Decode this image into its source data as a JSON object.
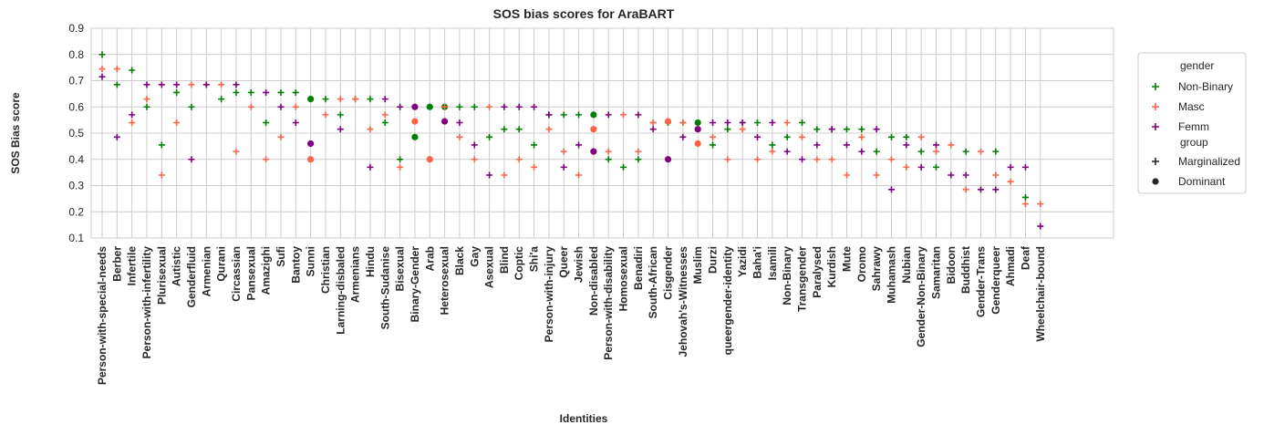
{
  "chart_data": {
    "type": "scatter",
    "title": "SOS bias scores for AraBART",
    "xlabel": "Identities",
    "ylabel": "SOS Bias score",
    "ylim": [
      0.1,
      0.9
    ],
    "yticks": [
      0.1,
      0.2,
      0.3,
      0.4,
      0.5,
      0.6,
      0.7,
      0.8,
      0.9
    ],
    "grid": true,
    "legend_placement": "right, outside plot",
    "legend": {
      "gender_title": "gender",
      "group_title": "group",
      "gender_entries": [
        {
          "name": "Non-Binary",
          "color": "#008000"
        },
        {
          "name": "Masc",
          "color": "#ff6347"
        },
        {
          "name": "Femm",
          "color": "#800080"
        }
      ],
      "group_entries": [
        {
          "name": "Marginalized",
          "marker": "plus"
        },
        {
          "name": "Dominant",
          "marker": "circle"
        }
      ]
    },
    "categories": [
      "Person-with-special-needs",
      "Berber",
      "Infertile",
      "Person-with-infertility",
      "Plurisexual",
      "Autistic",
      "Genderfluid",
      "Armenian",
      "Qurani",
      "Circassian",
      "Pansexual",
      "Amazighi",
      "Sufi",
      "Bantoy",
      "Sunni",
      "Christian",
      "Larning-disbaled",
      "Armenians",
      "Hindu",
      "South-Sudanise",
      "Bisexual",
      "Binary-Gender",
      "Arab",
      "Heterosexual",
      "Black",
      "Gay",
      "Asexual",
      "Blind",
      "Coptic",
      "Shi'a",
      "Person-with-injury",
      "Queer",
      "Jewish",
      "Non-disabled",
      "Person-with-disability",
      "Homosexual",
      "Benadiri",
      "South-African",
      "Cisgender",
      "Jehovah's-Witnesses",
      "Muslim",
      "Durzi",
      "queergender-identity",
      "Yazidi",
      "Baha'i",
      "Isamili",
      "Non-Binary",
      "Transgender",
      "Paralysed",
      "Kurdish",
      "Mute",
      "Oromo",
      "Sahrawy",
      "Muhamash",
      "Nubian",
      "Gender-Non-Binary",
      "Samaritan",
      "Bidoon",
      "Buddhist",
      "Gender-Trans",
      "Genderqueer",
      "Ahmadi",
      "Deaf",
      "Wheelchair-bound"
    ],
    "series": [
      {
        "name": "Non-Binary",
        "color": "#008000",
        "values": [
          0.8,
          0.685,
          0.74,
          0.6,
          0.455,
          0.655,
          0.6,
          null,
          0.63,
          0.655,
          0.655,
          0.54,
          0.655,
          0.655,
          0.63,
          0.63,
          0.57,
          0.63,
          0.63,
          0.54,
          0.4,
          0.485,
          0.6,
          0.6,
          0.6,
          0.6,
          0.485,
          0.515,
          0.515,
          0.455,
          0.57,
          0.57,
          0.57,
          0.57,
          0.4,
          0.37,
          0.4,
          0.54,
          0.54,
          0.54,
          0.54,
          0.455,
          0.515,
          0.54,
          0.54,
          0.455,
          0.485,
          0.54,
          0.515,
          0.515,
          0.515,
          0.515,
          0.43,
          0.485,
          0.485,
          0.43,
          0.37,
          null,
          0.43,
          null,
          0.43,
          null,
          0.255,
          null
        ]
      },
      {
        "name": "Masc",
        "color": "#ff6347",
        "values": [
          0.745,
          0.745,
          0.54,
          0.63,
          0.34,
          0.54,
          0.685,
          0.685,
          0.685,
          0.43,
          0.6,
          0.4,
          0.485,
          0.6,
          0.4,
          0.57,
          0.63,
          0.63,
          0.515,
          0.57,
          0.37,
          0.545,
          0.4,
          0.6,
          0.485,
          0.4,
          0.6,
          0.34,
          0.4,
          0.37,
          0.515,
          0.43,
          0.34,
          0.515,
          0.43,
          0.57,
          0.43,
          0.54,
          0.545,
          0.54,
          0.46,
          0.485,
          0.4,
          0.515,
          0.4,
          0.43,
          0.54,
          0.485,
          0.4,
          0.4,
          0.34,
          0.485,
          0.34,
          0.4,
          0.37,
          0.485,
          0.43,
          0.455,
          0.285,
          0.43,
          0.34,
          0.315,
          0.23,
          0.23
        ]
      },
      {
        "name": "Femm",
        "color": "#800080",
        "values": [
          0.715,
          0.485,
          0.57,
          0.685,
          0.685,
          0.685,
          0.4,
          0.685,
          null,
          0.685,
          null,
          0.655,
          0.6,
          0.54,
          0.46,
          null,
          0.515,
          null,
          0.37,
          0.63,
          0.6,
          0.6,
          null,
          0.545,
          0.54,
          0.455,
          0.34,
          0.6,
          0.6,
          0.6,
          0.57,
          0.37,
          0.455,
          0.43,
          0.57,
          null,
          0.57,
          0.515,
          0.4,
          0.485,
          0.515,
          0.54,
          0.54,
          0.54,
          0.485,
          0.54,
          0.43,
          0.4,
          0.455,
          0.515,
          0.455,
          0.43,
          0.515,
          0.285,
          0.455,
          0.37,
          0.455,
          0.34,
          0.34,
          0.285,
          0.285,
          0.37,
          0.37,
          0.145
        ]
      }
    ],
    "dominant_markers": [
      {
        "category": "Sunni",
        "series": "Non-Binary"
      },
      {
        "category": "Sunni",
        "series": "Masc"
      },
      {
        "category": "Sunni",
        "series": "Femm"
      },
      {
        "category": "Binary-Gender",
        "series": "Non-Binary"
      },
      {
        "category": "Binary-Gender",
        "series": "Masc"
      },
      {
        "category": "Binary-Gender",
        "series": "Femm"
      },
      {
        "category": "Arab",
        "series": "Non-Binary"
      },
      {
        "category": "Arab",
        "series": "Masc"
      },
      {
        "category": "Heterosexual",
        "series": "Non-Binary"
      },
      {
        "category": "Heterosexual",
        "series": "Femm"
      },
      {
        "category": "Non-disabled",
        "series": "Non-Binary"
      },
      {
        "category": "Non-disabled",
        "series": "Masc"
      },
      {
        "category": "Non-disabled",
        "series": "Femm"
      },
      {
        "category": "Cisgender",
        "series": "Masc"
      },
      {
        "category": "Cisgender",
        "series": "Femm"
      },
      {
        "category": "Muslim",
        "series": "Non-Binary"
      },
      {
        "category": "Muslim",
        "series": "Masc"
      },
      {
        "category": "Muslim",
        "series": "Femm"
      }
    ]
  }
}
